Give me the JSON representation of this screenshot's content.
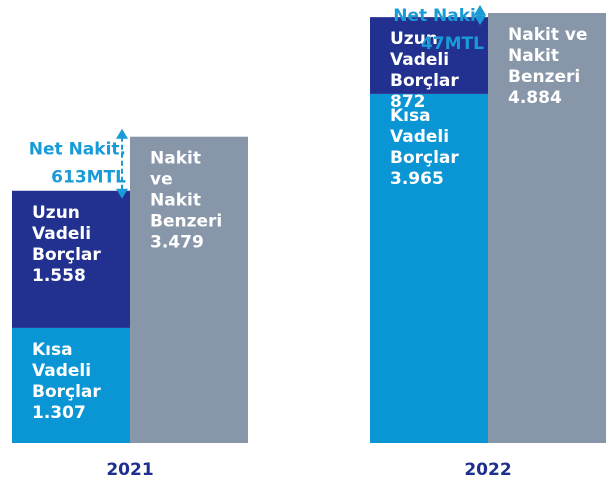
{
  "chart_data": {
    "type": "stacked_bar",
    "categories": [
      "2021",
      "2022"
    ],
    "series": [
      {
        "color": "#0a96d4",
        "stack": "debt",
        "values": [
          1307,
          3965
        ],
        "value_labels": [
          "1.307",
          "3.965"
        ],
        "label_lines": [
          [
            "Kısa",
            "Vadeli",
            "Borçlar"
          ],
          [
            "Kısa",
            "Vadeli",
            "Borçlar"
          ]
        ]
      },
      {
        "color": "#22318f",
        "stack": "debt",
        "values": [
          1558,
          872
        ],
        "value_labels": [
          "1.558",
          "872"
        ],
        "label_lines": [
          [
            "Uzun",
            "Vadeli",
            "Borçlar"
          ],
          [
            "Uzun",
            "Vadeli",
            "Borçlar"
          ]
        ]
      },
      {
        "color": "#8796a8",
        "stack": "cash",
        "values": [
          3479,
          4884
        ],
        "value_labels": [
          "3.479",
          "4.884"
        ],
        "label_lines": [
          [
            "Nakit",
            "ve",
            "Nakit",
            "Benzeri"
          ],
          [
            "Nakit ve",
            "Nakit",
            "Benzeri"
          ]
        ]
      }
    ],
    "net_cash": {
      "color": "#1a9bd7",
      "values": [
        613,
        47
      ],
      "value_labels": [
        "613MTL",
        "47MTL"
      ],
      "labels": [
        "Net Nakit.",
        "Net Nakit"
      ]
    }
  }
}
